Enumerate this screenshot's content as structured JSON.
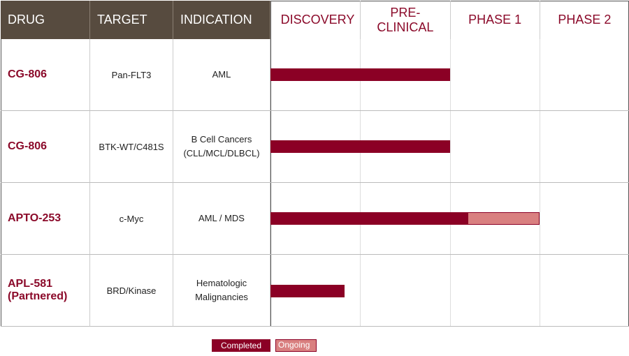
{
  "header": {
    "columns": [
      "DRUG",
      "TARGET",
      "INDICATION"
    ],
    "phases": [
      "DISCOVERY",
      "PRE-CLINICAL",
      "PHASE 1",
      "PHASE 2"
    ]
  },
  "rows": [
    {
      "drug": "CG-806",
      "target": "Pan-FLT3",
      "indication": "AML",
      "completed": 2.0
    },
    {
      "drug": "CG-806",
      "target": "BTK-WT/C481S",
      "indication": "B Cell Cancers (CLL/MCL/DLBCL)",
      "completed": 2.0
    },
    {
      "drug": "APTO-253",
      "target": "c-Myc",
      "indication": "AML / MDS",
      "completed": 2.2,
      "ongoing": 0.8
    },
    {
      "drug": "APL-581 (Partnered)",
      "target": "BRD/Kinase",
      "indication": "Hematologic Malignancies",
      "completed": 0.83
    }
  ],
  "legend": {
    "completed": {
      "label": "Completed",
      "color": "#8b0025"
    },
    "ongoing": {
      "label": "Ongoing",
      "color": "#d98080"
    }
  }
}
